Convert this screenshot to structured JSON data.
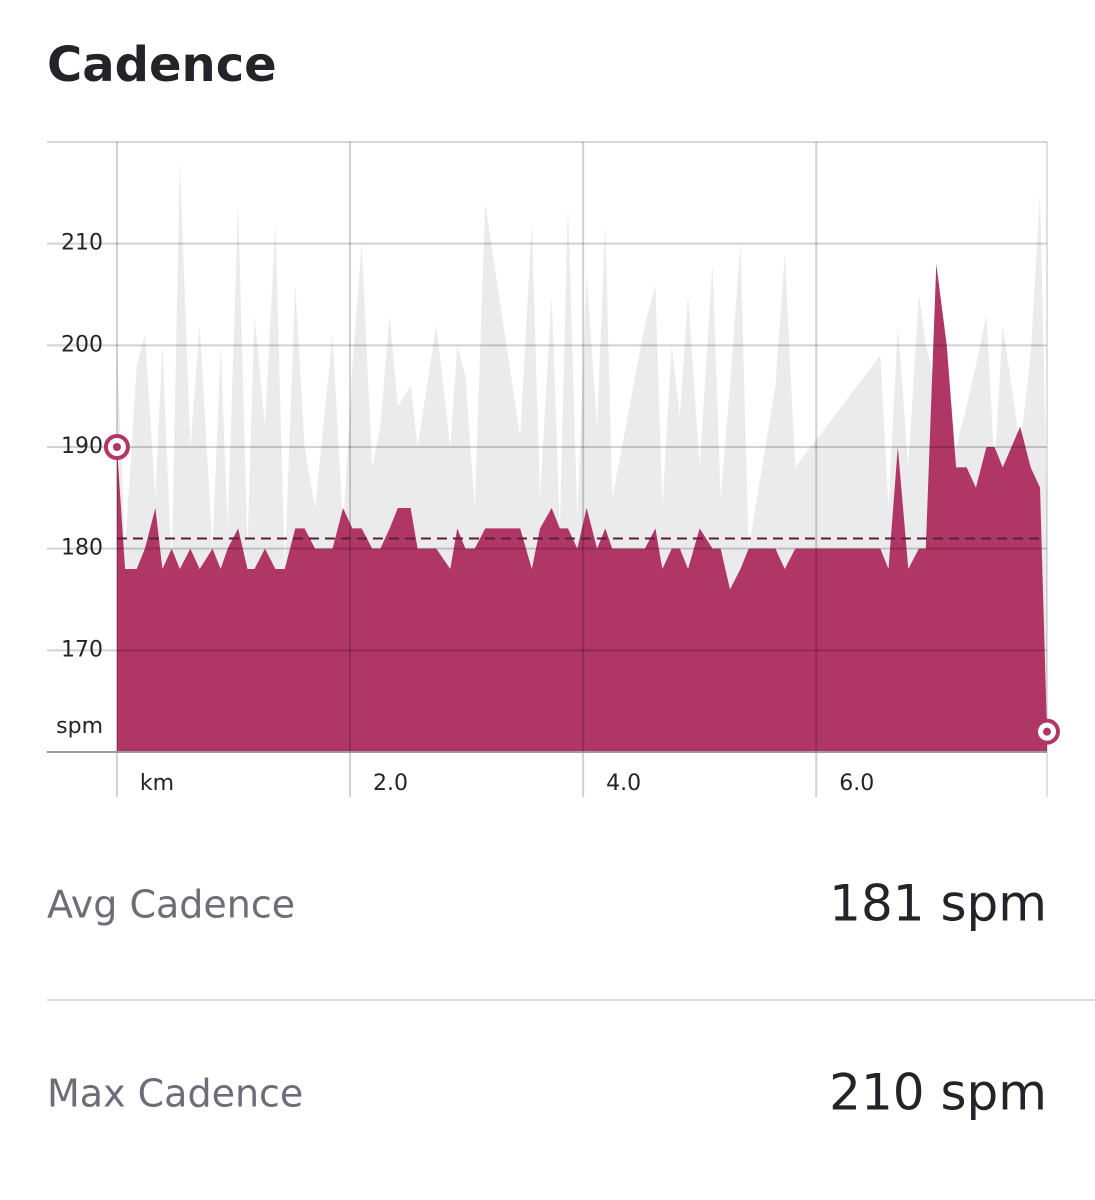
{
  "header": {
    "title": "Cadence"
  },
  "chart_data": {
    "type": "area",
    "x": [
      0,
      0.07,
      0.17,
      0.24,
      0.33,
      0.39,
      0.47,
      0.54,
      0.63,
      0.71,
      0.82,
      0.89,
      0.95,
      1.04,
      1.12,
      1.18,
      1.27,
      1.36,
      1.44,
      1.53,
      1.61,
      1.7,
      1.85,
      1.94,
      2.02,
      2.1,
      2.19,
      2.26,
      2.34,
      2.41,
      2.52,
      2.58,
      2.74,
      2.86,
      2.92,
      2.99,
      3.07,
      3.16,
      3.46,
      3.56,
      3.63,
      3.73,
      3.8,
      3.87,
      3.95,
      4.03,
      4.12,
      4.19,
      4.25,
      4.53,
      4.62,
      4.68,
      4.76,
      4.83,
      4.9,
      5.0,
      5.11,
      5.18,
      5.26,
      5.35,
      5.42,
      5.65,
      5.73,
      5.82,
      6.55,
      6.62,
      6.7,
      6.79,
      6.88,
      6.94,
      7.03,
      7.12,
      7.2,
      7.29,
      7.37,
      7.46,
      7.53,
      7.6,
      7.75,
      7.84,
      7.92,
      7.98
    ],
    "series": [
      {
        "color": "#ebebeb",
        "values": [
          200,
          180,
          198,
          201,
          185,
          200,
          178,
          218,
          190,
          202,
          180,
          200,
          182,
          214,
          180,
          203,
          192,
          212,
          178,
          206,
          190,
          184,
          201,
          182,
          198,
          210,
          188,
          192,
          203,
          194,
          196,
          190,
          202,
          190,
          200,
          197,
          184,
          214,
          191,
          212,
          185,
          205,
          182,
          214,
          183,
          207,
          192,
          212,
          185,
          202,
          206,
          184,
          200,
          193,
          205,
          188,
          208,
          185,
          196,
          210,
          180,
          196,
          209,
          188,
          199,
          184,
          202,
          188,
          205,
          200,
          196,
          188,
          190,
          194,
          198,
          203,
          188,
          202,
          190,
          199,
          215,
          185
        ]
      },
      {
        "color": "#b03666",
        "values": [
          190,
          178,
          178,
          180,
          184,
          178,
          180,
          178,
          180,
          178,
          180,
          178,
          180,
          182,
          178,
          178,
          180,
          178,
          178,
          182,
          182,
          180,
          180,
          184,
          182,
          182,
          180,
          180,
          182,
          184,
          184,
          180,
          180,
          178,
          182,
          180,
          180,
          182,
          182,
          178,
          182,
          184,
          182,
          182,
          180,
          184,
          180,
          182,
          180,
          180,
          182,
          178,
          180,
          180,
          178,
          182,
          180,
          180,
          176,
          178,
          180,
          180,
          178,
          180,
          180,
          178,
          190,
          178,
          180,
          180,
          208,
          200,
          188,
          188,
          186,
          190,
          190,
          188,
          192,
          188,
          186,
          162
        ]
      }
    ],
    "average": 181,
    "average_color": "#5a1f3a",
    "y_label": "spm",
    "xlim": [
      -0.6,
      7.98
    ],
    "ylim": [
      160,
      220
    ],
    "xticks": [
      {
        "value": 0,
        "label": "km"
      },
      {
        "value": 2,
        "label": "2.0"
      },
      {
        "value": 4,
        "label": "4.0"
      },
      {
        "value": 6,
        "label": "6.0"
      }
    ],
    "yticks": [
      170,
      180,
      190,
      200,
      210
    ],
    "grid": true
  },
  "stats": [
    {
      "label": "Avg Cadence",
      "value": "181 spm"
    },
    {
      "label": "Max Cadence",
      "value": "210 spm"
    }
  ]
}
